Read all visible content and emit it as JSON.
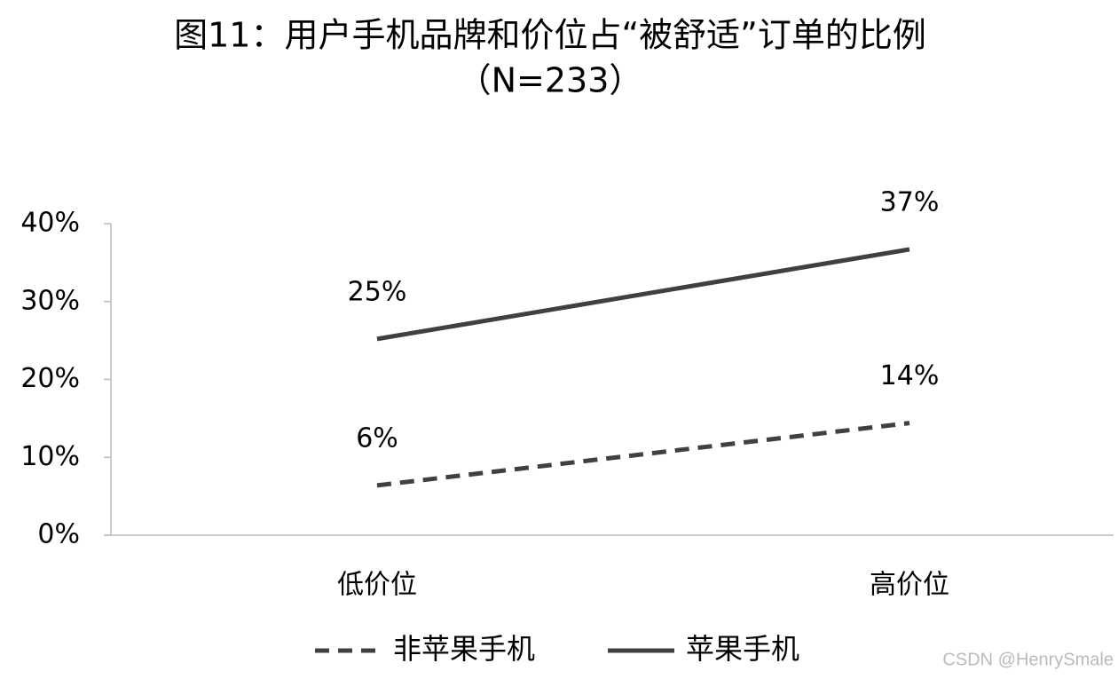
{
  "chart_data": {
    "type": "line",
    "title": "图11：用户手机品牌和价位占“被舒适”订单的比例",
    "subtitle": "（N=233）",
    "categories": [
      "低价位",
      "高价位"
    ],
    "series": [
      {
        "name": "非苹果手机",
        "color": "#404040",
        "line_style": "dashed",
        "values": [
          6.4,
          14.4
        ],
        "value_labels": [
          "6%",
          "14%"
        ]
      },
      {
        "name": "苹果手机",
        "color": "#404040",
        "line_style": "solid",
        "values": [
          25.2,
          36.7
        ],
        "value_labels": [
          "25%",
          "37%"
        ]
      }
    ],
    "ylim": [
      0,
      40
    ],
    "yticks": [
      {
        "value": 0,
        "label": "0%"
      },
      {
        "value": 10,
        "label": "10%"
      },
      {
        "value": 20,
        "label": "20%"
      },
      {
        "value": 30,
        "label": "30%"
      },
      {
        "value": 40,
        "label": "40%"
      }
    ],
    "legend": "bottom",
    "watermark": "CSDN @HenrySmale"
  }
}
